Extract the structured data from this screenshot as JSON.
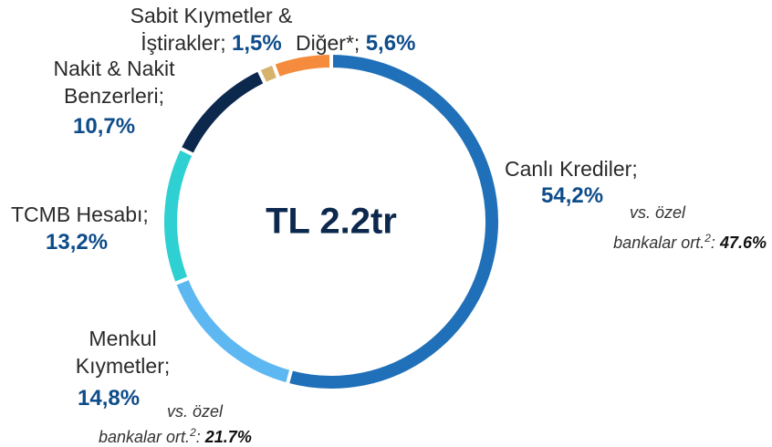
{
  "chart_data": {
    "type": "pie",
    "donut": true,
    "center_label": "TL 2.2tr",
    "categories": [
      "Canlı Krediler;",
      "Menkul Kıymetler;",
      "TCMB Hesabı;",
      "Nakit & Nakit Benzerleri;",
      "Sabit Kıymetler & İştirakler;",
      "Diğer*;"
    ],
    "values": [
      54.2,
      14.8,
      13.2,
      10.7,
      1.5,
      5.6
    ],
    "value_labels": [
      "54,2%",
      "14,8%",
      "13,2%",
      "10,7%",
      "1,5%",
      "5,6%"
    ],
    "colors": [
      "#1f70b8",
      "#5db8f2",
      "#2fd0d2",
      "#0c284d",
      "#d6b26c",
      "#f58b3c"
    ],
    "annotations": [
      {
        "text": [
          "vs. özel",
          "bankalar ort."
        ],
        "sup": "2",
        "sep": ":",
        "value": 47.6,
        "value_label": "47.6%"
      },
      {
        "text": [
          "vs. özel",
          "bankalar ort."
        ],
        "sup": "2",
        "sep": ":",
        "value": 21.7,
        "value_label": "21.7%"
      }
    ]
  }
}
